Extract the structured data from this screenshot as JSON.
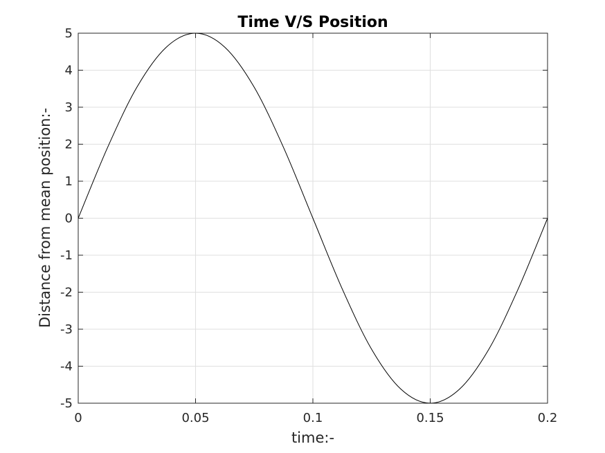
{
  "chart_data": {
    "type": "line",
    "title": "Time V/S Position",
    "xlabel": "time:-",
    "ylabel": "Distance from mean position:-",
    "xlim": [
      0,
      0.2
    ],
    "ylim": [
      -5,
      5
    ],
    "xticks": [
      0,
      0.05,
      0.1,
      0.15,
      0.2
    ],
    "xtick_labels": [
      "0",
      "0.05",
      "0.1",
      "0.15",
      "0.2"
    ],
    "yticks": [
      5,
      4,
      3,
      2,
      1,
      0,
      -1,
      -2,
      -3,
      -4,
      -5
    ],
    "ytick_labels": [
      "5",
      "4",
      "3",
      "2",
      "1",
      "0",
      "-1",
      "-2",
      "-3",
      "-4",
      "-5"
    ],
    "grid": true,
    "series": [
      {
        "color": "#000000",
        "x": [
          0,
          0.0125,
          0.025,
          0.0375,
          0.05,
          0.0625,
          0.075,
          0.0875,
          0.1,
          0.1125,
          0.125,
          0.1375,
          0.15,
          0.1625,
          0.175,
          0.1875,
          0.2
        ],
        "y": [
          0,
          1.91,
          3.54,
          4.62,
          5,
          4.62,
          3.54,
          1.91,
          0,
          -1.91,
          -3.54,
          -4.62,
          -5,
          -4.62,
          -3.54,
          -1.91,
          0
        ]
      }
    ]
  }
}
